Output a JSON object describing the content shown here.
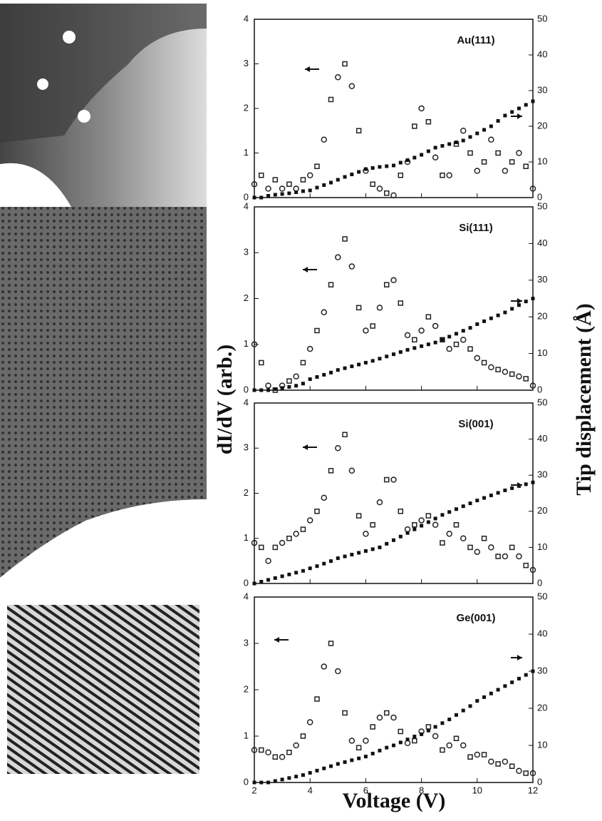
{
  "axis_labels": {
    "y": "dI/dV (arb.)",
    "y2": "Tip displacement (Å)",
    "x": "Voltage (V)"
  },
  "chart_data": [
    {
      "type": "scatter",
      "label": "Au(111)",
      "x": [
        2,
        2.25,
        2.5,
        2.75,
        3,
        3.25,
        3.5,
        3.75,
        4,
        4.25,
        4.5,
        4.75,
        5,
        5.25,
        5.5,
        5.75,
        6,
        6.25,
        6.5,
        6.75,
        7,
        7.25,
        7.5,
        7.75,
        8,
        8.25,
        8.5,
        8.75,
        9,
        9.25,
        9.5,
        9.75,
        10,
        10.25,
        10.5,
        10.75,
        11,
        11.25,
        11.5,
        11.75,
        12
      ],
      "xlim": [
        2,
        12
      ],
      "xticks": [
        2,
        4,
        6,
        8,
        10,
        12
      ],
      "ylim": [
        0,
        4
      ],
      "yticks": [
        0,
        1,
        2,
        3,
        4
      ],
      "y2lim": [
        0,
        50
      ],
      "y2ticks": [
        0,
        10,
        20,
        30,
        40,
        50
      ],
      "series": [
        {
          "color": "#222222",
          "values": [
            0.3,
            0.5,
            0.2,
            0.4,
            0.2,
            0.3,
            0.2,
            0.4,
            0.5,
            0.7,
            1.3,
            2.2,
            2.7,
            3.0,
            2.5,
            1.5,
            0.6,
            0.3,
            0.2,
            0.1,
            0.05,
            0.5,
            0.8,
            1.6,
            2.0,
            1.7,
            0.9,
            0.5,
            0.5,
            1.2,
            1.5,
            1.0,
            0.6,
            0.8,
            1.3,
            1.0,
            0.6,
            0.8,
            1.0,
            0.7,
            0.2
          ]
        },
        {
          "color": "#111111",
          "axis": "y2",
          "values": [
            0,
            0,
            0.5,
            0.8,
            1,
            1.2,
            1.5,
            1.8,
            2,
            2.8,
            3.5,
            4.2,
            5,
            5.8,
            6.5,
            7.2,
            8,
            8.3,
            8.6,
            8.8,
            9,
            9.8,
            10.5,
            11.2,
            12,
            13,
            14,
            14.5,
            15,
            15.5,
            16,
            17,
            18,
            19,
            20,
            21.5,
            23,
            24,
            25,
            26,
            27
          ]
        }
      ]
    },
    {
      "type": "scatter",
      "label": "Si(111)",
      "x": [
        2,
        2.25,
        2.5,
        2.75,
        3,
        3.25,
        3.5,
        3.75,
        4,
        4.25,
        4.5,
        4.75,
        5,
        5.25,
        5.5,
        5.75,
        6,
        6.25,
        6.5,
        6.75,
        7,
        7.25,
        7.5,
        7.75,
        8,
        8.25,
        8.5,
        8.75,
        9,
        9.25,
        9.5,
        9.75,
        10,
        10.25,
        10.5,
        10.75,
        11,
        11.25,
        11.5,
        11.75,
        12
      ],
      "xlim": [
        2,
        12
      ],
      "xticks": [
        2,
        4,
        6,
        8,
        10,
        12
      ],
      "ylim": [
        0,
        4
      ],
      "yticks": [
        0,
        1,
        2,
        3,
        4
      ],
      "y2lim": [
        0,
        50
      ],
      "y2ticks": [
        0,
        10,
        20,
        30,
        40,
        50
      ],
      "series": [
        {
          "color": "#222222",
          "values": [
            1.0,
            0.6,
            0.1,
            0,
            0.1,
            0.2,
            0.3,
            0.6,
            0.9,
            1.3,
            1.7,
            2.3,
            2.9,
            3.3,
            2.7,
            1.8,
            1.3,
            1.4,
            1.8,
            2.3,
            2.4,
            1.9,
            1.2,
            1.1,
            1.3,
            1.6,
            1.4,
            1.1,
            0.9,
            1.0,
            1.1,
            0.9,
            0.7,
            0.6,
            0.5,
            0.45,
            0.4,
            0.35,
            0.3,
            0.25,
            0.1
          ]
        },
        {
          "color": "#111111",
          "axis": "y2",
          "values": [
            0,
            0,
            0,
            0.3,
            0.6,
            0.9,
            1.2,
            1.8,
            3,
            3.6,
            4.2,
            4.8,
            5.5,
            6,
            6.5,
            7,
            7.5,
            8,
            8.6,
            9.2,
            9.8,
            10.4,
            11,
            11.5,
            12,
            12.5,
            13,
            13.8,
            14.6,
            15.4,
            16.2,
            17,
            18,
            18.8,
            19.6,
            20.4,
            21.2,
            22.2,
            23.2,
            24.2,
            25
          ]
        }
      ]
    },
    {
      "type": "scatter",
      "label": "Si(001)",
      "x": [
        2,
        2.25,
        2.5,
        2.75,
        3,
        3.25,
        3.5,
        3.75,
        4,
        4.25,
        4.5,
        4.75,
        5,
        5.25,
        5.5,
        5.75,
        6,
        6.25,
        6.5,
        6.75,
        7,
        7.25,
        7.5,
        7.75,
        8,
        8.25,
        8.5,
        8.75,
        9,
        9.25,
        9.5,
        9.75,
        10,
        10.25,
        10.5,
        10.75,
        11,
        11.25,
        11.5,
        11.75,
        12
      ],
      "xlim": [
        2,
        12
      ],
      "xticks": [
        2,
        4,
        6,
        8,
        10,
        12
      ],
      "ylim": [
        0,
        4
      ],
      "yticks": [
        0,
        1,
        2,
        3,
        4
      ],
      "y2lim": [
        0,
        50
      ],
      "y2ticks": [
        0,
        10,
        20,
        30,
        40,
        50
      ],
      "series": [
        {
          "color": "#222222",
          "values": [
            0.9,
            0.8,
            0.5,
            0.8,
            0.9,
            1.0,
            1.1,
            1.2,
            1.4,
            1.6,
            1.9,
            2.5,
            3.0,
            3.3,
            2.5,
            1.5,
            1.1,
            1.3,
            1.8,
            2.3,
            2.3,
            1.6,
            1.2,
            1.3,
            1.4,
            1.5,
            1.3,
            0.9,
            1.1,
            1.3,
            1.0,
            0.8,
            0.7,
            1.0,
            0.8,
            0.6,
            0.6,
            0.8,
            0.6,
            0.4,
            0.3
          ]
        },
        {
          "color": "#111111",
          "axis": "y2",
          "values": [
            0,
            0.5,
            1,
            1.5,
            2,
            2.5,
            3,
            3.5,
            4.2,
            4.8,
            5.5,
            6.2,
            7,
            7.5,
            8,
            8.5,
            9,
            9.5,
            10,
            11,
            12,
            13,
            14,
            15,
            16,
            17,
            18,
            19,
            19.8,
            20.6,
            21.4,
            22.2,
            23,
            23.7,
            24.4,
            25.1,
            25.8,
            26.4,
            27,
            27.5,
            28
          ]
        }
      ]
    },
    {
      "type": "scatter",
      "label": "Ge(001)",
      "x": [
        2,
        2.25,
        2.5,
        2.75,
        3,
        3.25,
        3.5,
        3.75,
        4,
        4.25,
        4.5,
        4.75,
        5,
        5.25,
        5.5,
        5.75,
        6,
        6.25,
        6.5,
        6.75,
        7,
        7.25,
        7.5,
        7.75,
        8,
        8.25,
        8.5,
        8.75,
        9,
        9.25,
        9.5,
        9.75,
        10,
        10.25,
        10.5,
        10.75,
        11,
        11.25,
        11.5,
        11.75,
        12
      ],
      "xlim": [
        2,
        12
      ],
      "xticks": [
        2,
        4,
        6,
        8,
        10,
        12
      ],
      "ylim": [
        0,
        4
      ],
      "yticks": [
        0,
        1,
        2,
        3,
        4
      ],
      "y2lim": [
        0,
        50
      ],
      "y2ticks": [
        0,
        10,
        20,
        30,
        40,
        50
      ],
      "series": [
        {
          "color": "#222222",
          "values": [
            0.7,
            0.7,
            0.65,
            0.55,
            0.55,
            0.65,
            0.8,
            1.0,
            1.3,
            1.8,
            2.5,
            3.0,
            2.4,
            1.5,
            0.9,
            0.75,
            0.9,
            1.2,
            1.4,
            1.5,
            1.4,
            1.1,
            0.85,
            0.9,
            1.1,
            1.2,
            1.0,
            0.7,
            0.8,
            0.95,
            0.8,
            0.55,
            0.6,
            0.6,
            0.45,
            0.4,
            0.45,
            0.35,
            0.25,
            0.2,
            0.2
          ]
        },
        {
          "color": "#111111",
          "axis": "y2",
          "values": [
            0,
            0,
            0,
            0.4,
            0.8,
            1.2,
            1.6,
            2,
            2.6,
            3.2,
            3.8,
            4.4,
            5,
            5.5,
            6,
            6.5,
            7,
            7.8,
            8.6,
            9.4,
            10,
            10.8,
            11.6,
            12.4,
            13,
            14,
            15,
            16,
            17,
            18.2,
            19.4,
            20.6,
            22,
            23,
            24,
            25,
            26,
            27,
            28,
            29,
            30
          ]
        }
      ]
    }
  ]
}
